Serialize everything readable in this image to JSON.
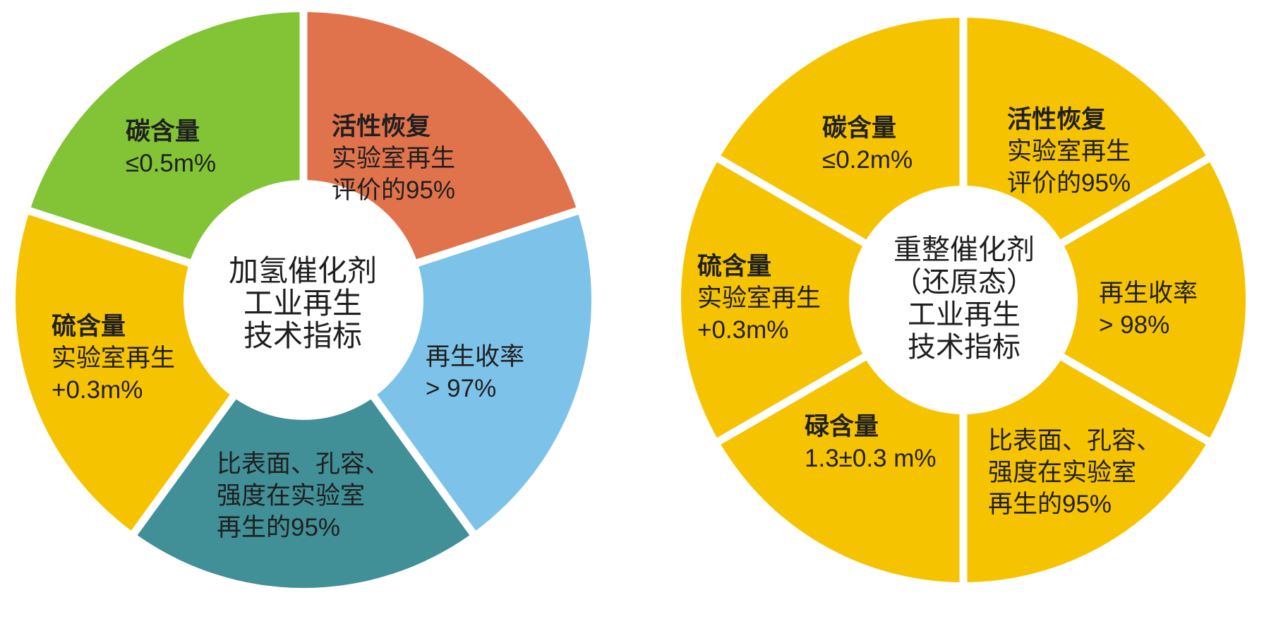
{
  "charts": [
    {
      "name": "hydrotreating-catalyst",
      "center_lines": [
        "加氢催化剂",
        "工业再生",
        "技术指标"
      ],
      "segments": [
        {
          "title": "活性恢复",
          "lines": [
            "实验室再生",
            "评价的95%"
          ],
          "color": "#e0734c"
        },
        {
          "title": "",
          "lines": [
            "再生收率",
            "> 97%"
          ],
          "color": "#7dc2e8"
        },
        {
          "title": "",
          "lines": [
            "比表面、孔容、",
            "强度在实验室",
            "再生的95%"
          ],
          "color": "#418f97"
        },
        {
          "title": "硫含量",
          "lines": [
            "实验室再生",
            "+0.3m%"
          ],
          "color": "#f6c301"
        },
        {
          "title": "碳含量",
          "lines": [
            "≤0.5m%"
          ],
          "color": "#82c436"
        }
      ]
    },
    {
      "name": "reforming-catalyst",
      "center_lines": [
        "重整催化剂",
        "（还原态）",
        "工业再生",
        "技术指标"
      ],
      "segments": [
        {
          "title": "活性恢复",
          "lines": [
            "实验室再生",
            "评价的95%"
          ],
          "color": "#f6c301"
        },
        {
          "title": "",
          "lines": [
            "再生收率",
            "> 98%"
          ],
          "color": "#f6c301"
        },
        {
          "title": "",
          "lines": [
            "比表面、孔容、",
            "强度在实验室",
            "再生的95%"
          ],
          "color": "#f6c301"
        },
        {
          "title": "碌含量",
          "lines": [
            "1.3±0.3 m%"
          ],
          "color": "#f6c301"
        },
        {
          "title": "硫含量",
          "lines": [
            "实验室再生",
            "+0.3m%"
          ],
          "color": "#f6c301"
        },
        {
          "title": "碳含量",
          "lines": [
            "≤0.2m%"
          ],
          "color": "#f6c301"
        }
      ]
    }
  ],
  "chart_data": [
    {
      "type": "pie",
      "donut": true,
      "title": "加氢催化剂工业再生技术指标",
      "labels": [
        "活性恢复：实验室再生评价的95%",
        "再生收率 > 97%",
        "比表面、孔容、强度在实验室再生的95%",
        "硫含量：实验室再生+0.3m%",
        "碳含量 ≤0.5m%"
      ],
      "values": [
        20,
        20,
        20,
        20,
        20
      ],
      "colors": [
        "#e0734c",
        "#7dc2e8",
        "#418f97",
        "#f6c301",
        "#82c436"
      ],
      "legend_position": "none",
      "grid": false
    },
    {
      "type": "pie",
      "donut": true,
      "title": "重整催化剂（还原态）工业再生技术指标",
      "labels": [
        "活性恢复：实验室再生评价的95%",
        "再生收率 > 98%",
        "比表面、孔容、强度在实验室再生的95%",
        "碌含量 1.3±0.3 m%",
        "硫含量：实验室再生+0.3m%",
        "碳含量 ≤0.2m%"
      ],
      "values": [
        16.67,
        16.67,
        16.67,
        16.67,
        16.67,
        16.67
      ],
      "colors": [
        "#f6c301",
        "#f6c301",
        "#f6c301",
        "#f6c301",
        "#f6c301",
        "#f6c301"
      ],
      "legend_position": "none",
      "grid": false
    }
  ],
  "colors": {
    "background": "#ffffff",
    "divider": "#ffffff",
    "text": "#1f1f1f"
  }
}
